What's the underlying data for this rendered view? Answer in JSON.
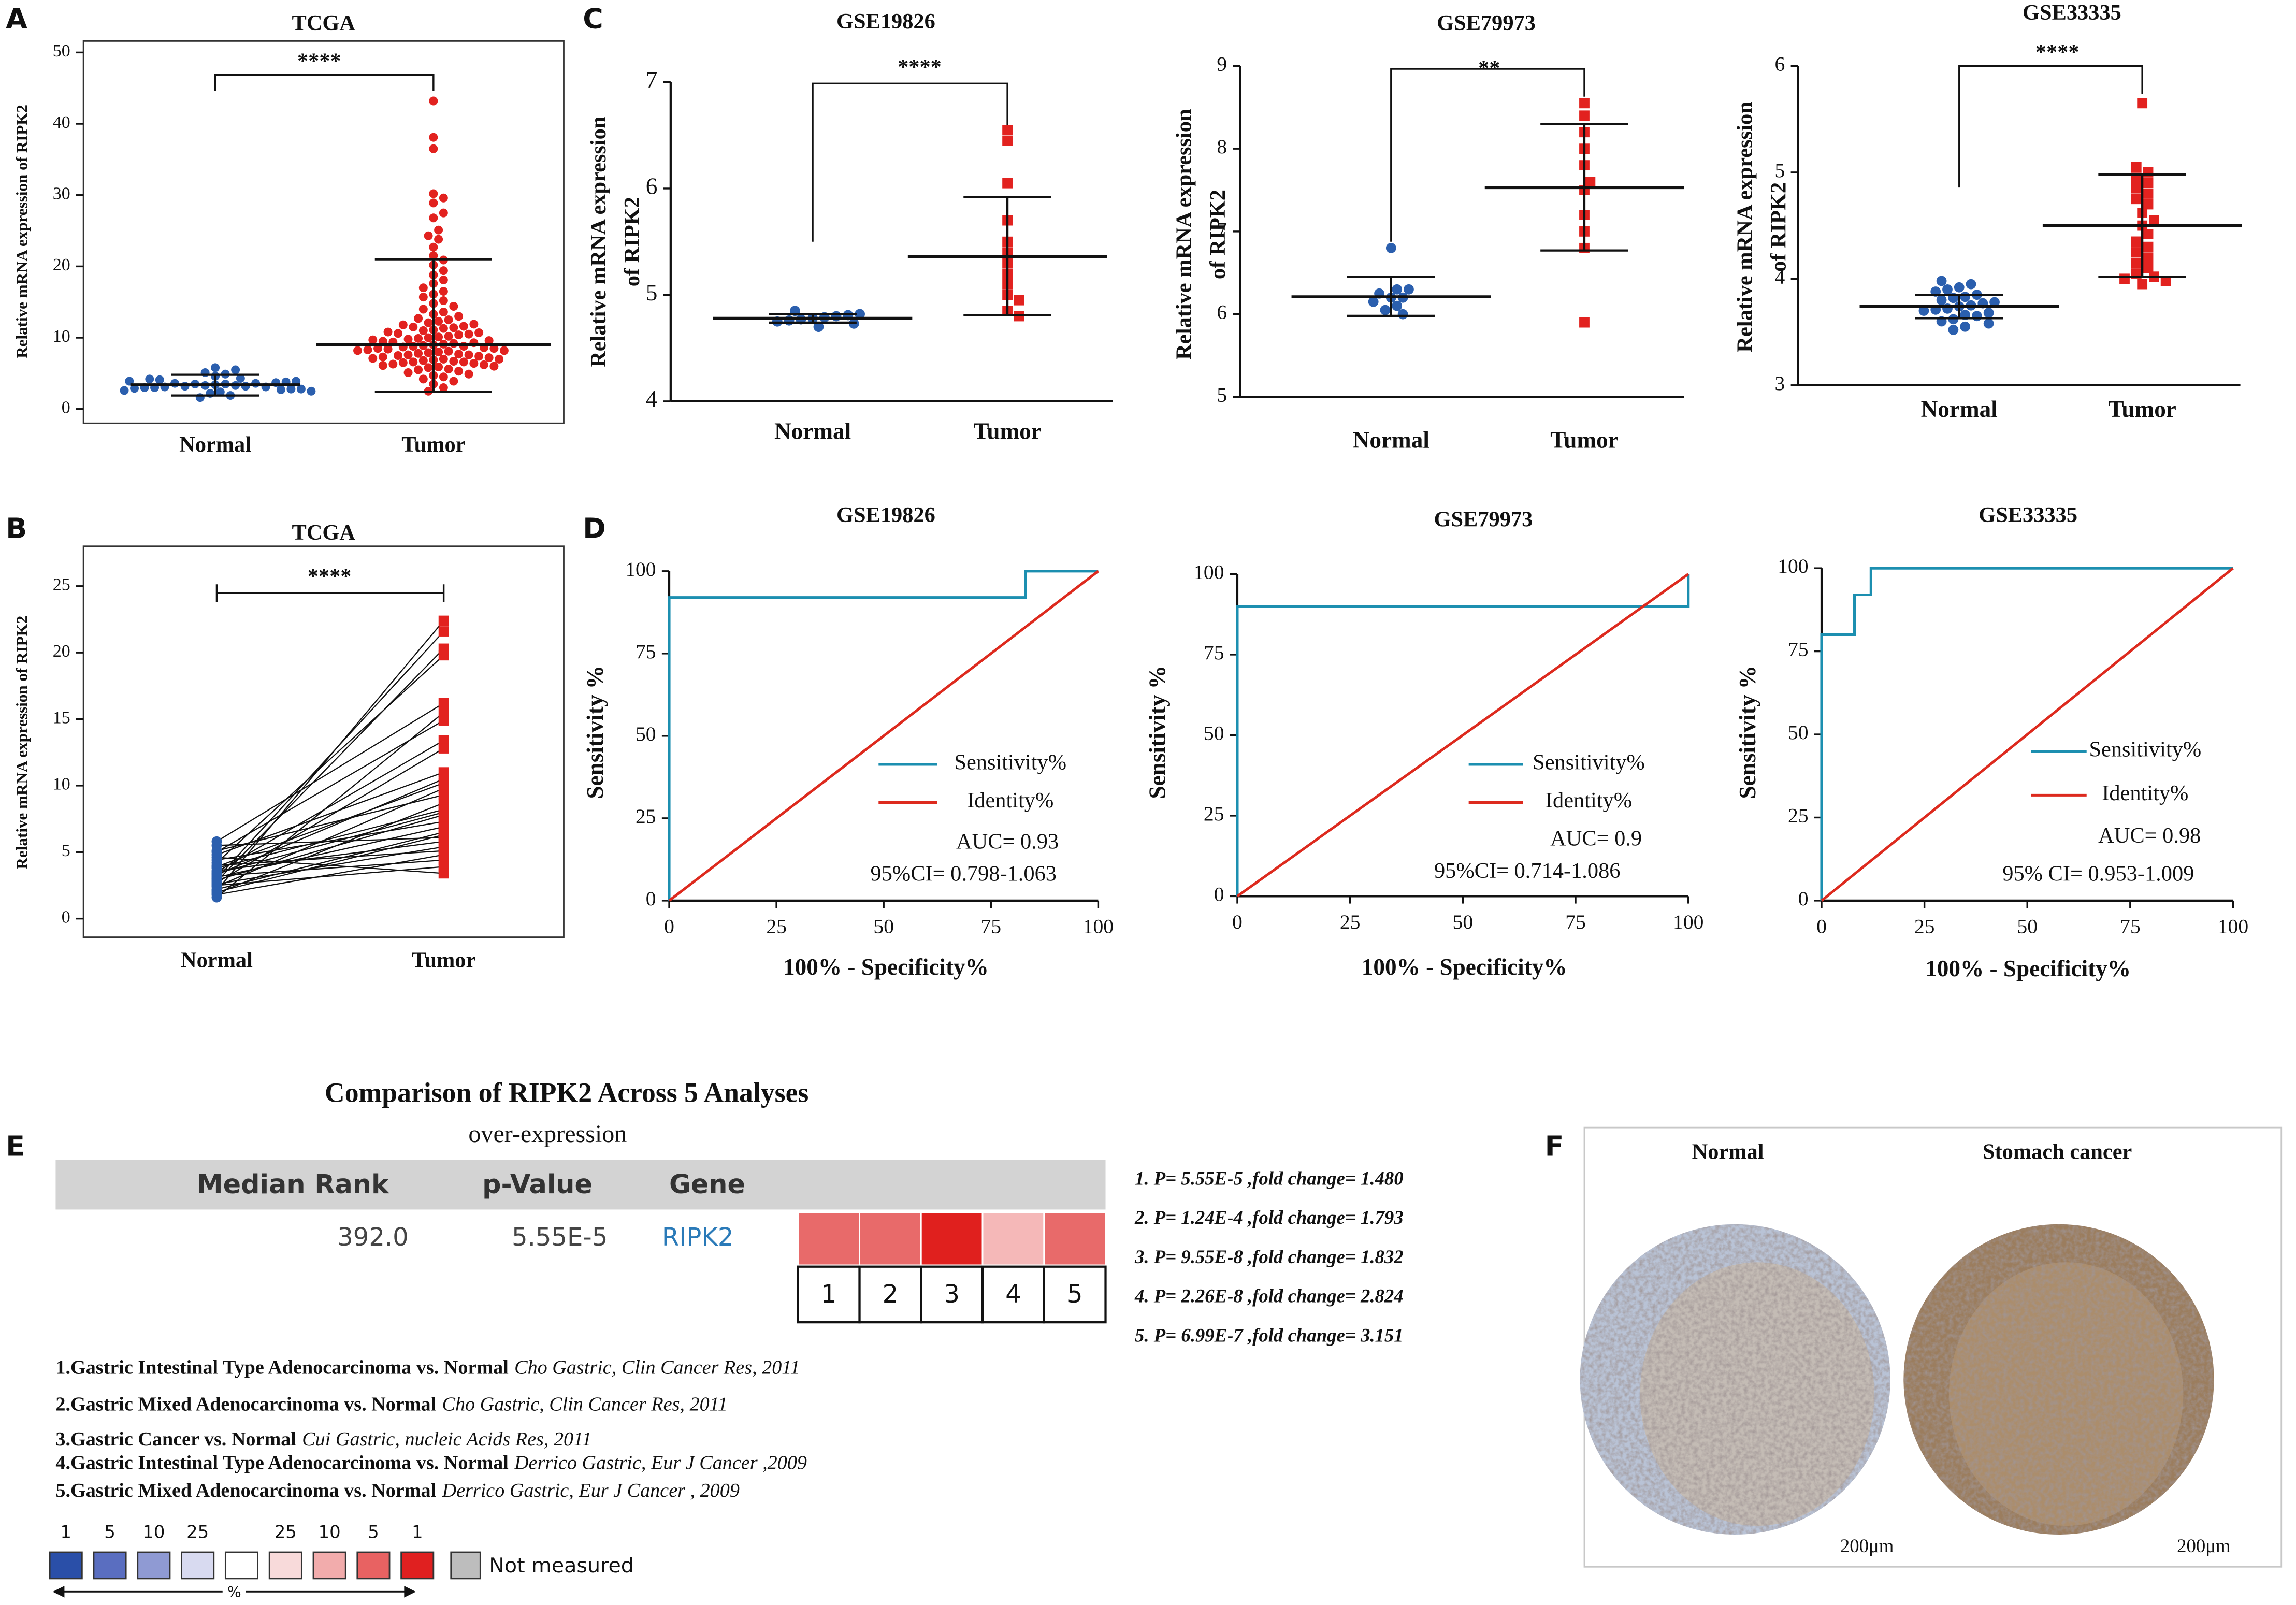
{
  "panel_labels": [
    "A",
    "B",
    "C",
    "D",
    "E",
    "F"
  ],
  "chart_data": [
    {
      "type": "strip",
      "title": "TCGA",
      "ylabel": [
        "Relative mRNA expression of RIPK2"
      ],
      "significance": "****",
      "ylim": [
        -2,
        51.6
      ],
      "yticks": [
        0,
        10,
        20,
        30,
        40,
        50
      ],
      "series": [
        {
          "name": "Normal",
          "color": "#2b5fae",
          "marker": "circle",
          "mean": 3.4,
          "sd_upper": 4.8,
          "sd_lower": 1.9,
          "values": [
            3.2,
            3.5,
            2.8,
            4.1,
            3.0,
            3.7,
            2.5,
            3.9,
            4.6,
            3.3,
            2.9,
            3.1,
            5.5,
            5.8,
            3.6,
            2.2,
            1.9,
            3.4,
            4.3,
            3.8,
            2.7,
            3.0,
            3.2,
            4.9,
            2.4,
            3.6,
            1.6,
            3.9,
            4.2,
            3.1,
            2.6,
            3.3,
            5.1,
            3.5,
            2.8
          ]
        },
        {
          "name": "Tumor",
          "color": "#e2221f",
          "marker": "circle",
          "mean": 9.0,
          "sd_upper": 21.0,
          "sd_lower": 2.4,
          "values": [
            43.2,
            38.1,
            36.5,
            30.2,
            29.6,
            28.9,
            27.5,
            26.8,
            25.1,
            24.3,
            23.8,
            22.7,
            21.5,
            20.9,
            20.2,
            19.4,
            18.8,
            18.1,
            17.6,
            17.0,
            16.5,
            16.1,
            15.7,
            15.2,
            14.8,
            14.4,
            14.0,
            13.6,
            13.3,
            13.0,
            12.7,
            12.5,
            12.3,
            12.1,
            11.9,
            11.8,
            11.6,
            11.4,
            11.3,
            11.1,
            11.0,
            10.8,
            10.7,
            10.5,
            10.4,
            10.2,
            10.1,
            10.0,
            9.9,
            9.7,
            9.6,
            9.5,
            9.4,
            9.2,
            9.1,
            9.0,
            8.9,
            8.8,
            8.7,
            8.6,
            8.5,
            8.4,
            8.3,
            8.2,
            8.1,
            8.0,
            7.9,
            7.8,
            7.7,
            7.6,
            7.5,
            7.4,
            7.3,
            7.2,
            7.1,
            7.0,
            6.9,
            6.8,
            6.7,
            6.6,
            6.5,
            6.4,
            6.3,
            6.2,
            6.1,
            6.0,
            5.9,
            5.8,
            5.6,
            5.5,
            5.3,
            5.1,
            4.9,
            4.7,
            4.5,
            4.2,
            3.9,
            3.5,
            3.0,
            2.5,
            9.3,
            8.8,
            8.2,
            7.6,
            10.6,
            9.8,
            11.5,
            7.0,
            6.6,
            8.5
          ]
        }
      ]
    },
    {
      "type": "paired",
      "title": "TCGA",
      "ylabel": [
        "Relative mRNA expression of RIPK2"
      ],
      "significance": "****",
      "ylim": [
        -1.4,
        28
      ],
      "yticks": [
        0,
        5,
        10,
        15,
        20,
        25
      ],
      "series": [
        {
          "name": "Normal",
          "color": "#2b5fae",
          "marker": "circle",
          "values": [
            2.1,
            3.0,
            4.2,
            5.8,
            1.6,
            3.5,
            2.7,
            4.8,
            3.3,
            2.4,
            5.1,
            1.9,
            3.8,
            2.9,
            4.4,
            3.1,
            2.2,
            5.5,
            3.6,
            2.6,
            4.0,
            1.8,
            3.2,
            2.5,
            4.6,
            3.9,
            2.0,
            3.4,
            5.0,
            2.8
          ]
        },
        {
          "name": "Tumor",
          "color": "#e2221f",
          "marker": "square",
          "values": [
            22.4,
            21.6,
            19.8,
            16.2,
            15.5,
            13.4,
            12.8,
            11.0,
            10.5,
            9.8,
            9.3,
            8.7,
            8.2,
            7.8,
            7.3,
            6.9,
            6.5,
            6.1,
            5.8,
            5.4,
            5.1,
            4.8,
            4.4,
            3.9,
            3.4,
            10.2,
            6.3,
            8.0,
            14.9,
            20.3
          ]
        }
      ]
    },
    {
      "type": "strip",
      "title": "GSE19826",
      "ylabel": [
        "Relative mRNA expression",
        "of RIPK2"
      ],
      "significance": "****",
      "ylim": [
        4,
        7
      ],
      "yticks": [
        4,
        5,
        6,
        7
      ],
      "series": [
        {
          "name": "Normal",
          "color": "#2b5fae",
          "marker": "circle",
          "mean": 4.78,
          "sd_upper": 4.82,
          "sd_lower": 4.74,
          "values": [
            4.78,
            4.82,
            4.75,
            4.8,
            4.7,
            4.85,
            4.76,
            4.79,
            4.81,
            4.73,
            4.77
          ]
        },
        {
          "name": "Tumor",
          "color": "#e2221f",
          "marker": "square",
          "mean": 5.36,
          "sd_upper": 5.92,
          "sd_lower": 4.81,
          "values": [
            6.55,
            6.45,
            6.05,
            5.7,
            5.5,
            5.3,
            5.2,
            5.1,
            5.0,
            4.95,
            4.85,
            4.8,
            5.4
          ]
        }
      ]
    },
    {
      "type": "strip",
      "title": "GSE79973",
      "ylabel": [
        "Relative mRNA expression",
        "of RIPK2"
      ],
      "significance": "**",
      "ylim": [
        5,
        9
      ],
      "yticks": [
        5,
        6,
        7,
        8,
        9
      ],
      "series": [
        {
          "name": "Normal",
          "color": "#2b5fae",
          "marker": "circle",
          "mean": 6.21,
          "sd_upper": 6.45,
          "sd_lower": 5.98,
          "values": [
            6.8,
            6.3,
            6.2,
            6.15,
            6.1,
            6.05,
            6.0,
            6.2,
            6.25,
            6.3
          ]
        },
        {
          "name": "Tumor",
          "color": "#e2221f",
          "marker": "square",
          "mean": 7.53,
          "sd_upper": 8.3,
          "sd_lower": 6.77,
          "values": [
            8.55,
            8.4,
            8.2,
            8.0,
            7.8,
            7.6,
            7.5,
            7.2,
            6.8,
            5.9,
            7.0
          ]
        }
      ]
    },
    {
      "type": "strip",
      "title": "GSE33335",
      "ylabel": [
        "Relative mRNA expression",
        "of RIPK2"
      ],
      "significance": "****",
      "ylim": [
        3,
        6
      ],
      "yticks": [
        3,
        4,
        5,
        6
      ],
      "series": [
        {
          "name": "Normal",
          "color": "#2b5fae",
          "marker": "circle",
          "mean": 3.74,
          "sd_upper": 3.85,
          "sd_lower": 3.63,
          "values": [
            3.98,
            3.95,
            3.92,
            3.9,
            3.88,
            3.85,
            3.83,
            3.82,
            3.8,
            3.78,
            3.77,
            3.75,
            3.74,
            3.72,
            3.71,
            3.7,
            3.68,
            3.66,
            3.65,
            3.62,
            3.6,
            3.58,
            3.55,
            3.52
          ]
        },
        {
          "name": "Tumor",
          "color": "#e2221f",
          "marker": "square",
          "mean": 4.5,
          "sd_upper": 4.98,
          "sd_lower": 4.02,
          "values": [
            5.65,
            5.05,
            5.0,
            4.95,
            4.9,
            4.85,
            4.8,
            4.75,
            4.7,
            4.62,
            4.55,
            4.5,
            4.42,
            4.35,
            4.3,
            4.25,
            4.2,
            4.15,
            4.1,
            4.05,
            4.02,
            4.0,
            3.98,
            3.95
          ]
        }
      ]
    },
    {
      "type": "line",
      "title": "GSE19826",
      "xlabel": "100% - Specificity%",
      "ylabel": "Sensitivity %",
      "xlim": [
        0,
        100
      ],
      "ylim": [
        0,
        100
      ],
      "xticks": [
        0,
        25,
        50,
        75,
        100
      ],
      "yticks": [
        0,
        25,
        50,
        75,
        100
      ],
      "auc": "AUC= 0.93",
      "ci": "95%CI= 0.798-1.063",
      "series": [
        {
          "name": "Sensitivity%",
          "color": "#1c8fb0",
          "x": [
            0,
            0,
            83,
            83,
            100
          ],
          "y": [
            0,
            92,
            92,
            100,
            100
          ]
        },
        {
          "name": "Identity%",
          "color": "#dd2a1e",
          "x": [
            0,
            100
          ],
          "y": [
            0,
            100
          ]
        }
      ]
    },
    {
      "type": "line",
      "title": "GSE79973",
      "xlabel": "100% - Specificity%",
      "ylabel": "Sensitivity %",
      "xlim": [
        0,
        100
      ],
      "ylim": [
        0,
        100
      ],
      "xticks": [
        0,
        25,
        50,
        75,
        100
      ],
      "yticks": [
        0,
        25,
        50,
        75,
        100
      ],
      "auc": "AUC= 0.9",
      "ci": "95%CI= 0.714-1.086",
      "series": [
        {
          "name": "Sensitivity%",
          "color": "#1c8fb0",
          "x": [
            0,
            0,
            100,
            100
          ],
          "y": [
            0,
            90,
            90,
            100
          ]
        },
        {
          "name": "Identity%",
          "color": "#dd2a1e",
          "x": [
            0,
            100
          ],
          "y": [
            0,
            100
          ]
        }
      ]
    },
    {
      "type": "line",
      "title": "GSE33335",
      "xlabel": "100% - Specificity%",
      "ylabel": "Sensitivity %",
      "xlim": [
        0,
        100
      ],
      "ylim": [
        0,
        100
      ],
      "xticks": [
        0,
        25,
        50,
        75,
        100
      ],
      "yticks": [
        0,
        25,
        50,
        75,
        100
      ],
      "auc": "AUC= 0.98",
      "ci": "95% CI= 0.953-1.009",
      "series": [
        {
          "name": "Sensitivity%",
          "color": "#1c8fb0",
          "x": [
            0,
            0,
            8,
            8,
            12,
            12,
            100
          ],
          "y": [
            0,
            80,
            80,
            92,
            92,
            100,
            100
          ]
        },
        {
          "name": "Identity%",
          "color": "#dd2a1e",
          "x": [
            0,
            100
          ],
          "y": [
            0,
            100
          ]
        }
      ]
    }
  ],
  "comparison": {
    "title": "Comparison of RIPK2 Across 5 Analyses",
    "subtitle": "over-expression",
    "columns": [
      "Median Rank",
      "p-Value",
      "Gene"
    ],
    "row": [
      "392.0",
      "5.55E-5",
      "RIPK2"
    ],
    "cells": {
      "labels": [
        1,
        2,
        3,
        4,
        5
      ],
      "colors": [
        "#e86a6a",
        "#e86a6a",
        "#e0201e",
        "#f5b8b8",
        "#e86a6a"
      ]
    },
    "pvalues": [
      "1. P= 5.55E-5 ,fold change= 1.480",
      "2. P= 1.24E-4 ,fold change= 1.793",
      "3. P= 9.55E-8 ,fold change= 1.832",
      "4. P= 2.26E-8 ,fold change= 2.824",
      "5. P= 6.99E-7 ,fold change= 3.151"
    ],
    "references": [
      {
        "text": "1.Gastric Intestinal Type Adenocarcinoma vs. Normal",
        "citation": "Cho Gastric, Clin Cancer Res, 2011"
      },
      {
        "text": "2.Gastric Mixed Adenocarcinoma vs. Normal",
        "citation": "Cho Gastric, Clin Cancer Res, 2011"
      },
      {
        "text": "3.Gastric Cancer vs. Normal",
        "citation": "Cui Gastric, nucleic Acids Res, 2011"
      },
      {
        "text": "4.Gastric Intestinal Type Adenocarcinoma vs. Normal",
        "citation": "Derrico Gastric, Eur J Cancer ,2009"
      },
      {
        "text": "5.Gastric Mixed Adenocarcinoma vs. Normal",
        "citation": "Derrico Gastric, Eur J Cancer , 2009"
      }
    ],
    "scale": {
      "labels": [
        1,
        5,
        10,
        25,
        null,
        25,
        10,
        5,
        1
      ],
      "colors": [
        "#2a4fa8",
        "#5a6ec0",
        "#8f9ad3",
        "#d8daf0",
        "#ffffff",
        "#f8dada",
        "#f2acac",
        "#e86262",
        "#e02020"
      ],
      "unit": "%",
      "not_measured": "Not measured",
      "not_measured_color": "#bdbdbd"
    }
  },
  "ihc": {
    "labels": [
      "Normal",
      "Stomach cancer"
    ],
    "scale_bar": "200μm"
  }
}
